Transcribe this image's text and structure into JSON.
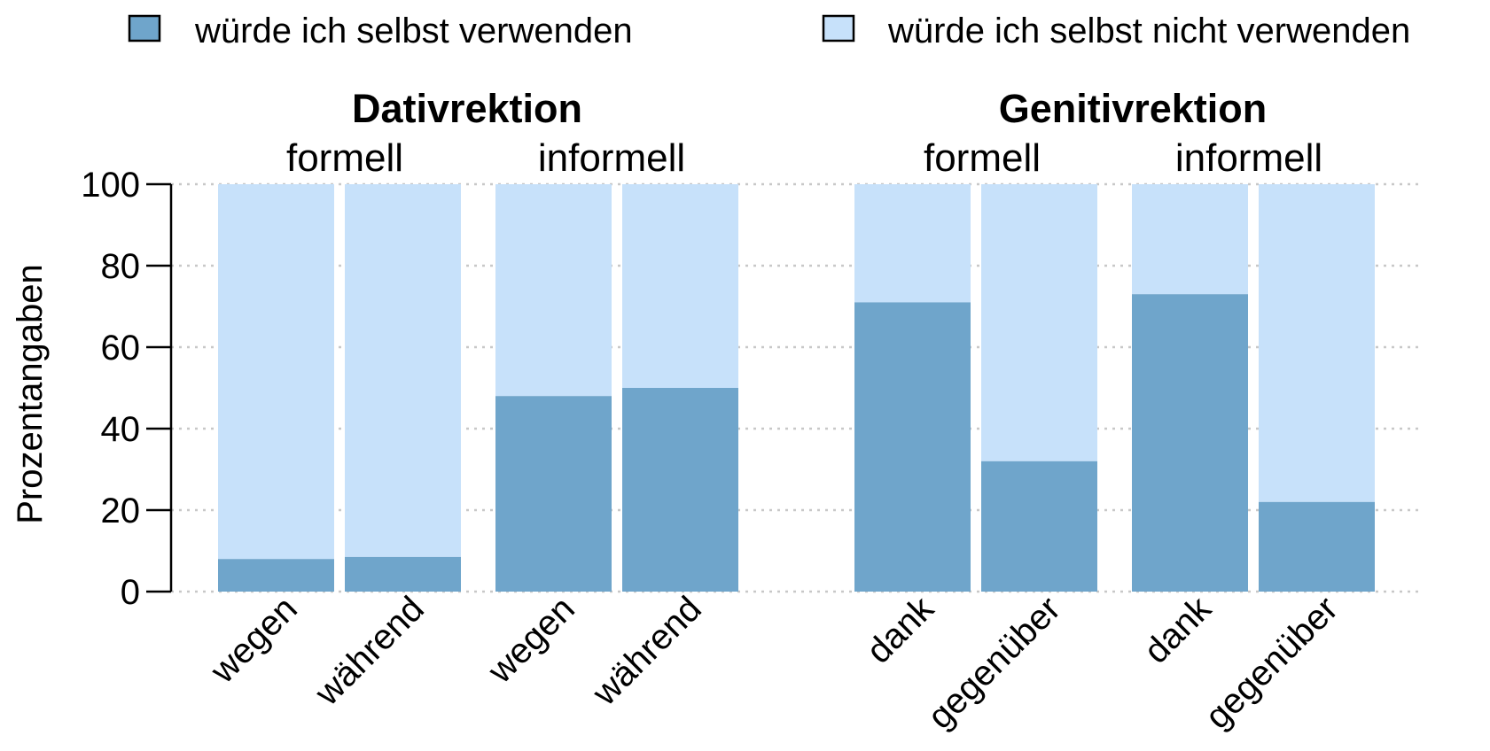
{
  "chart_data": {
    "type": "bar",
    "stacked": true,
    "legend": {
      "placement": "top",
      "items": [
        {
          "label": "würde ich selbst verwenden",
          "color": "#6fa5cb"
        },
        {
          "label": "würde ich selbst nicht verwenden",
          "color": "#c7e1fa"
        }
      ]
    },
    "ylabel": "Prozentangaben",
    "ylim": [
      0,
      100
    ],
    "yticks": [
      "0",
      "20",
      "40",
      "60",
      "80",
      "100"
    ],
    "grid": "horizontal dotted",
    "groups": [
      {
        "title": "Dativrektion",
        "subgroups": [
          {
            "label": "formell",
            "bars": [
              {
                "category": "wegen",
                "use": 8,
                "not_use": 92
              },
              {
                "category": "während",
                "use": 8.5,
                "not_use": 91.5
              }
            ]
          },
          {
            "label": "informell",
            "bars": [
              {
                "category": "wegen",
                "use": 48,
                "not_use": 52
              },
              {
                "category": "während",
                "use": 50,
                "not_use": 50
              }
            ]
          }
        ]
      },
      {
        "title": "Genitivrektion",
        "subgroups": [
          {
            "label": "formell",
            "bars": [
              {
                "category": "dank",
                "use": 71,
                "not_use": 29
              },
              {
                "category": "gegenüber",
                "use": 32,
                "not_use": 68
              }
            ]
          },
          {
            "label": "informell",
            "bars": [
              {
                "category": "dank",
                "use": 73,
                "not_use": 27
              },
              {
                "category": "gegenüber",
                "use": 22,
                "not_use": 78
              }
            ]
          }
        ]
      }
    ]
  }
}
